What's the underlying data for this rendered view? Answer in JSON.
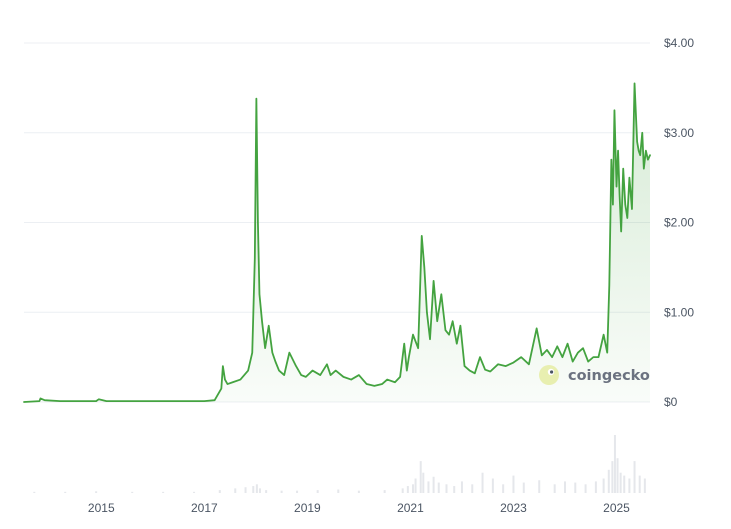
{
  "chart_data": {
    "type": "area",
    "title": "",
    "xlabel": "",
    "ylabel": "",
    "x_tick_labels": [
      "2015",
      "2017",
      "2019",
      "2021",
      "2023",
      "2025"
    ],
    "y_tick_labels": [
      "$0",
      "$1.00",
      "$2.00",
      "$3.00",
      "$4.00"
    ],
    "ylim": [
      0,
      4
    ],
    "xlim": [
      2013.5,
      2025.65
    ],
    "grid": true,
    "legend": "none",
    "series": [
      {
        "color": "#44a340",
        "x": [
          2013.5,
          2013.8,
          2013.82,
          2013.9,
          2014.2,
          2014.9,
          2014.95,
          2015.1,
          2016.0,
          2017.0,
          2017.2,
          2017.33,
          2017.36,
          2017.4,
          2017.45,
          2017.55,
          2017.7,
          2017.85,
          2017.93,
          2017.98,
          2018.01,
          2018.04,
          2018.07,
          2018.12,
          2018.18,
          2018.25,
          2018.32,
          2018.38,
          2018.45,
          2018.55,
          2018.65,
          2018.78,
          2018.88,
          2018.97,
          2019.1,
          2019.25,
          2019.38,
          2019.45,
          2019.55,
          2019.7,
          2019.85,
          2020.0,
          2020.15,
          2020.3,
          2020.45,
          2020.55,
          2020.7,
          2020.8,
          2020.88,
          2020.93,
          2020.97,
          2021.05,
          2021.15,
          2021.22,
          2021.27,
          2021.32,
          2021.38,
          2021.45,
          2021.52,
          2021.6,
          2021.68,
          2021.75,
          2021.82,
          2021.9,
          2021.97,
          2022.05,
          2022.15,
          2022.25,
          2022.35,
          2022.45,
          2022.55,
          2022.7,
          2022.85,
          2023.0,
          2023.15,
          2023.3,
          2023.45,
          2023.55,
          2023.65,
          2023.75,
          2023.85,
          2023.95,
          2024.05,
          2024.15,
          2024.25,
          2024.35,
          2024.45,
          2024.55,
          2024.65,
          2024.75,
          2024.82,
          2024.86,
          2024.9,
          2024.93,
          2024.96,
          2025.0,
          2025.03,
          2025.06,
          2025.09,
          2025.13,
          2025.17,
          2025.21,
          2025.25,
          2025.3,
          2025.35,
          2025.4,
          2025.43,
          2025.46,
          2025.5,
          2025.53,
          2025.57,
          2025.61,
          2025.65
        ],
        "values": [
          0.0,
          0.01,
          0.04,
          0.02,
          0.01,
          0.01,
          0.03,
          0.01,
          0.01,
          0.01,
          0.02,
          0.15,
          0.4,
          0.25,
          0.2,
          0.22,
          0.25,
          0.35,
          0.55,
          1.6,
          3.38,
          2.0,
          1.2,
          0.9,
          0.6,
          0.85,
          0.55,
          0.45,
          0.35,
          0.3,
          0.55,
          0.4,
          0.3,
          0.28,
          0.35,
          0.3,
          0.42,
          0.3,
          0.35,
          0.28,
          0.25,
          0.3,
          0.2,
          0.18,
          0.2,
          0.25,
          0.22,
          0.28,
          0.65,
          0.35,
          0.5,
          0.75,
          0.6,
          1.85,
          1.5,
          1.0,
          0.7,
          1.35,
          0.9,
          1.2,
          0.8,
          0.75,
          0.9,
          0.65,
          0.85,
          0.4,
          0.35,
          0.32,
          0.5,
          0.36,
          0.34,
          0.42,
          0.4,
          0.44,
          0.5,
          0.42,
          0.82,
          0.52,
          0.58,
          0.5,
          0.62,
          0.5,
          0.65,
          0.45,
          0.55,
          0.6,
          0.45,
          0.5,
          0.5,
          0.75,
          0.55,
          1.3,
          2.7,
          2.2,
          3.25,
          2.4,
          2.8,
          2.3,
          1.9,
          2.6,
          2.2,
          2.05,
          2.5,
          2.15,
          3.55,
          2.9,
          2.8,
          2.75,
          3.0,
          2.6,
          2.8,
          2.7,
          2.75
        ]
      }
    ],
    "volume": {
      "x": [
        2013.7,
        2014.3,
        2014.9,
        2015.6,
        2016.2,
        2016.8,
        2017.3,
        2017.6,
        2017.8,
        2017.95,
        2018.02,
        2018.08,
        2018.2,
        2018.5,
        2018.8,
        2019.2,
        2019.6,
        2020.0,
        2020.5,
        2020.85,
        2020.95,
        2021.05,
        2021.1,
        2021.2,
        2021.25,
        2021.35,
        2021.45,
        2021.55,
        2021.7,
        2021.85,
        2022.0,
        2022.2,
        2022.4,
        2022.6,
        2022.8,
        2023.0,
        2023.2,
        2023.5,
        2023.8,
        2024.0,
        2024.2,
        2024.4,
        2024.6,
        2024.75,
        2024.85,
        2024.92,
        2024.97,
        2025.02,
        2025.08,
        2025.15,
        2025.25,
        2025.35,
        2025.45,
        2025.55
      ],
      "values": [
        0.02,
        0.02,
        0.03,
        0.02,
        0.02,
        0.02,
        0.05,
        0.08,
        0.1,
        0.12,
        0.15,
        0.08,
        0.05,
        0.04,
        0.04,
        0.05,
        0.06,
        0.04,
        0.05,
        0.08,
        0.12,
        0.15,
        0.25,
        0.55,
        0.35,
        0.2,
        0.28,
        0.18,
        0.15,
        0.12,
        0.2,
        0.15,
        0.35,
        0.25,
        0.15,
        0.3,
        0.18,
        0.22,
        0.15,
        0.2,
        0.18,
        0.15,
        0.2,
        0.25,
        0.4,
        0.55,
        1.0,
        0.6,
        0.35,
        0.3,
        0.25,
        0.55,
        0.3,
        0.25
      ]
    }
  },
  "watermark": {
    "text": "coingecko",
    "icon": "coingecko-gecko-icon"
  }
}
